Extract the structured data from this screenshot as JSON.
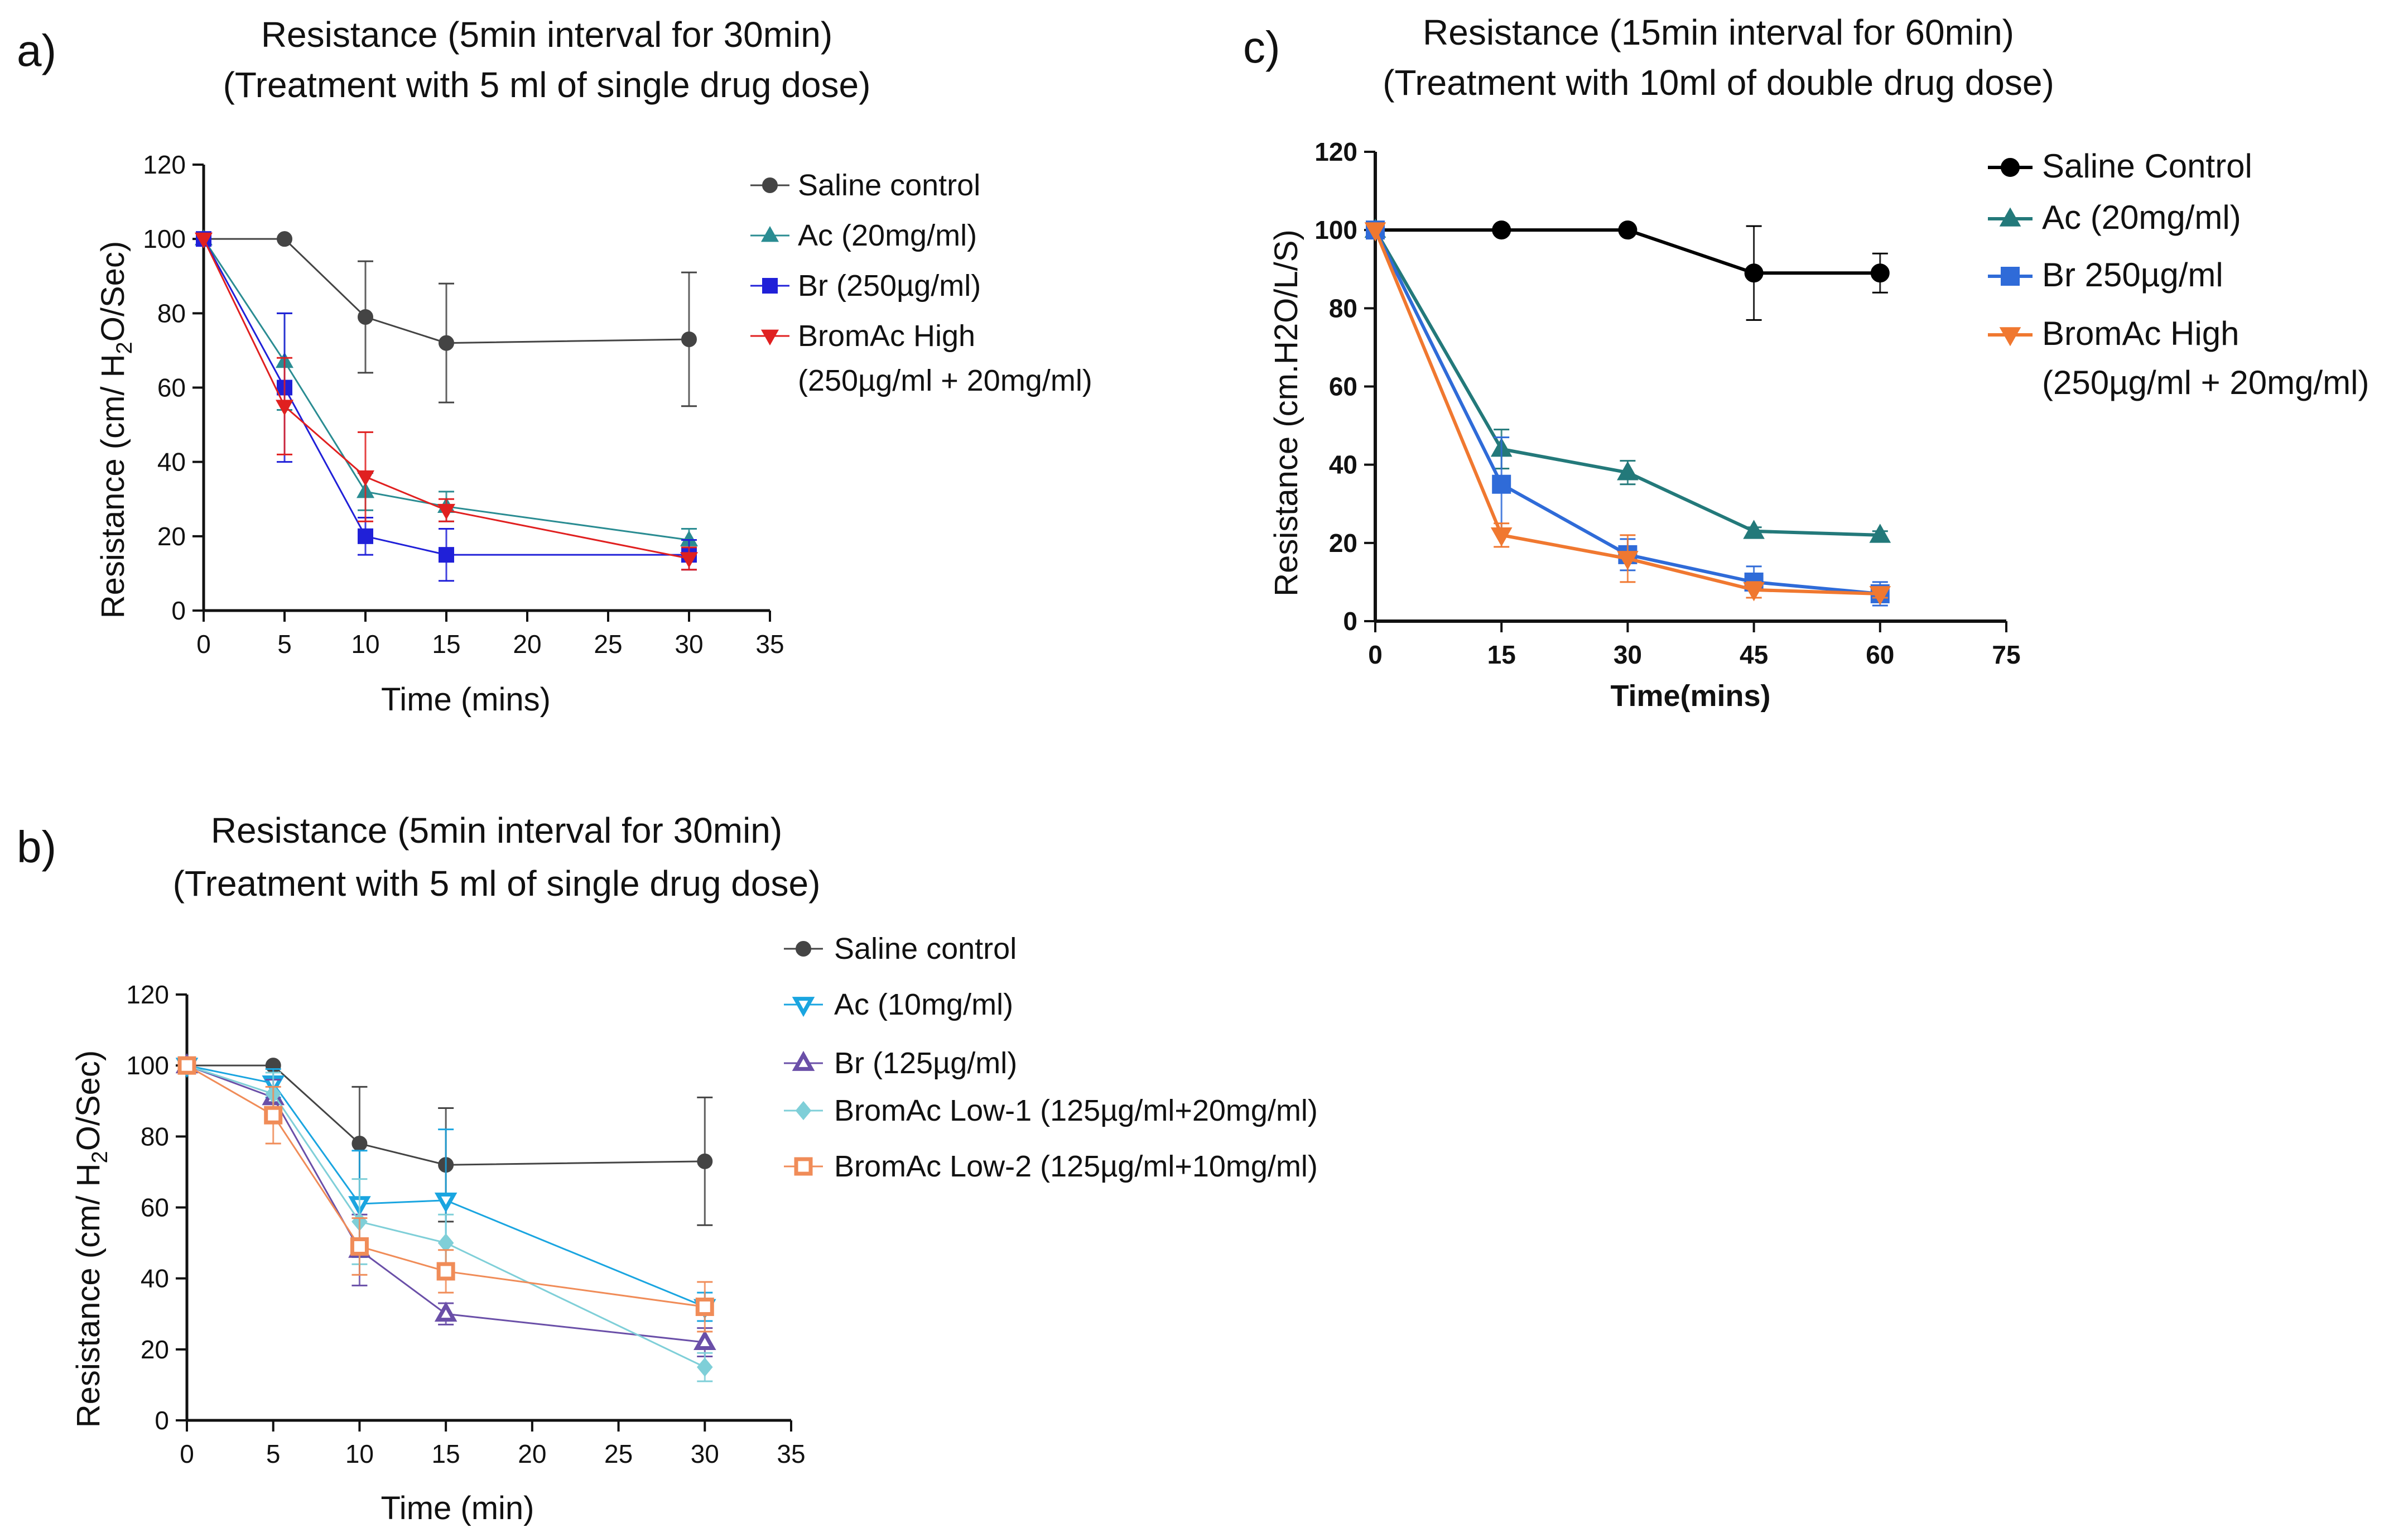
{
  "panels": {
    "a": "a)",
    "b": "b)",
    "c": "c)"
  },
  "chart_data": [
    {
      "id": "a",
      "type": "line",
      "title": [
        "Resistance (5min interval for 30min)",
        "(Treatment with 5 ml of single drug dose)"
      ],
      "xlabel": "Time (mins)",
      "ylabel": "Resistance (cm/ H2O/Sec)",
      "xlim": [
        0,
        35
      ],
      "ylim": [
        0,
        120
      ],
      "xticks": [
        0,
        5,
        10,
        15,
        20,
        25,
        30,
        35
      ],
      "yticks": [
        0,
        20,
        40,
        60,
        80,
        100,
        120
      ],
      "series": [
        {
          "name": "Saline control",
          "label_lines": [
            "Saline control"
          ],
          "color": "#444444",
          "marker": "circle",
          "x": [
            0,
            5,
            10,
            15,
            30
          ],
          "values": [
            100,
            100,
            79,
            72,
            73
          ],
          "errors": [
            0,
            0,
            15,
            16,
            18
          ]
        },
        {
          "name": "Ac (20mg/ml)",
          "label_lines": [
            "Ac (20mg/ml)"
          ],
          "color": "#2a8c92",
          "marker": "triangle-up",
          "x": [
            0,
            5,
            10,
            15,
            30
          ],
          "values": [
            100,
            67,
            32,
            28,
            19
          ],
          "errors": [
            0,
            13,
            5,
            4,
            3
          ]
        },
        {
          "name": "Br (250µg/ml)",
          "label_lines": [
            "Br (250µg/ml)"
          ],
          "color": "#2020d8",
          "marker": "square",
          "x": [
            0,
            5,
            10,
            15,
            30
          ],
          "values": [
            100,
            60,
            20,
            15,
            15
          ],
          "errors": [
            0,
            20,
            5,
            7,
            4
          ]
        },
        {
          "name": "BromAc High (250µg/ml + 20mg/ml)",
          "label_lines": [
            "BromAc High",
            "(250µg/ml + 20mg/ml)"
          ],
          "color": "#e02020",
          "marker": "triangle-down",
          "x": [
            0,
            5,
            10,
            15,
            30
          ],
          "values": [
            100,
            55,
            36,
            27,
            14
          ],
          "errors": [
            0,
            13,
            12,
            3,
            3
          ]
        }
      ]
    },
    {
      "id": "b",
      "type": "line",
      "title": [
        "Resistance (5min interval for 30min)",
        "(Treatment with 5 ml of single drug dose)"
      ],
      "xlabel": "Time (min)",
      "ylabel": "Resistance (cm/ H2O/Sec)",
      "xlim": [
        0,
        35
      ],
      "ylim": [
        0,
        120
      ],
      "xticks": [
        0,
        5,
        10,
        15,
        20,
        25,
        30,
        35
      ],
      "yticks": [
        0,
        20,
        40,
        60,
        80,
        100,
        120
      ],
      "series": [
        {
          "name": "Saline control",
          "label_lines": [
            "Saline control"
          ],
          "color": "#444444",
          "marker": "circle",
          "x": [
            0,
            5,
            10,
            15,
            30
          ],
          "values": [
            100,
            100,
            78,
            72,
            73
          ],
          "errors": [
            0,
            0,
            16,
            16,
            18
          ]
        },
        {
          "name": "Ac (10mg/ml)",
          "label_lines": [
            "Ac (10mg/ml)"
          ],
          "color": "#1aa5e0",
          "marker": "triangle-down-open",
          "x": [
            0,
            5,
            10,
            15,
            30
          ],
          "values": [
            100,
            95,
            61,
            62,
            32
          ],
          "errors": [
            0,
            4,
            15,
            20,
            4
          ]
        },
        {
          "name": "Br (125µg/ml)",
          "label_lines": [
            "Br (125µg/ml)"
          ],
          "color": "#6a4fa8",
          "marker": "triangle-up-open",
          "x": [
            0,
            5,
            10,
            15,
            30
          ],
          "values": [
            100,
            91,
            48,
            30,
            22
          ],
          "errors": [
            0,
            5,
            10,
            3,
            4
          ]
        },
        {
          "name": "BromAc Low-1 (125µg/ml+20mg/ml)",
          "label_lines": [
            "BromAc Low-1 (125µg/ml+20mg/ml)"
          ],
          "color": "#7fcfd8",
          "marker": "diamond",
          "x": [
            0,
            5,
            10,
            15,
            30
          ],
          "values": [
            100,
            92,
            56,
            50,
            15
          ],
          "errors": [
            0,
            6,
            12,
            8,
            4
          ]
        },
        {
          "name": "BromAc Low-2 (125µg/ml+10mg/ml)",
          "label_lines": [
            "BromAc Low-2 (125µg/ml+10mg/ml)"
          ],
          "color": "#f08c58",
          "marker": "square-open",
          "x": [
            0,
            5,
            10,
            15,
            30
          ],
          "values": [
            100,
            86,
            49,
            42,
            32
          ],
          "errors": [
            0,
            8,
            8,
            6,
            7
          ]
        }
      ]
    },
    {
      "id": "c",
      "type": "line",
      "title": [
        "Resistance (15min interval for 60min)",
        "(Treatment with 10ml of double drug dose)"
      ],
      "xlabel": "Time(mins)",
      "ylabel": "Resistance (cm.H2O/L/S)",
      "xlim": [
        0,
        75
      ],
      "ylim": [
        0,
        120
      ],
      "xticks": [
        0,
        15,
        30,
        45,
        60,
        75
      ],
      "yticks": [
        0,
        20,
        40,
        60,
        80,
        100,
        120
      ],
      "series": [
        {
          "name": "Saline Control",
          "label_lines": [
            "Saline Control"
          ],
          "color": "#000000",
          "marker": "circle",
          "x": [
            0,
            15,
            30,
            45,
            60
          ],
          "values": [
            100,
            100,
            100,
            89,
            89
          ],
          "errors": [
            0,
            0,
            0,
            12,
            5
          ]
        },
        {
          "name": "Ac (20mg/ml)",
          "label_lines": [
            "Ac (20mg/ml)"
          ],
          "color": "#23797a",
          "marker": "triangle-up",
          "x": [
            0,
            15,
            30,
            45,
            60
          ],
          "values": [
            100,
            44,
            38,
            23,
            22
          ],
          "errors": [
            0,
            5,
            3,
            1,
            1
          ]
        },
        {
          "name": "Br 250µg/ml",
          "label_lines": [
            "Br 250µg/ml"
          ],
          "color": "#2f6bd8",
          "marker": "square",
          "x": [
            0,
            15,
            30,
            45,
            60
          ],
          "values": [
            100,
            35,
            17,
            10,
            7
          ],
          "errors": [
            0,
            12,
            4,
            4,
            3
          ]
        },
        {
          "name": "BromAc High (250µg/ml + 20mg/ml)",
          "label_lines": [
            "BromAc High",
            "(250µg/ml + 20mg/ml)"
          ],
          "color": "#f07830",
          "marker": "triangle-down",
          "x": [
            0,
            15,
            30,
            45,
            60
          ],
          "values": [
            100,
            22,
            16,
            8,
            7
          ],
          "errors": [
            0,
            3,
            6,
            2,
            1
          ]
        }
      ]
    }
  ]
}
